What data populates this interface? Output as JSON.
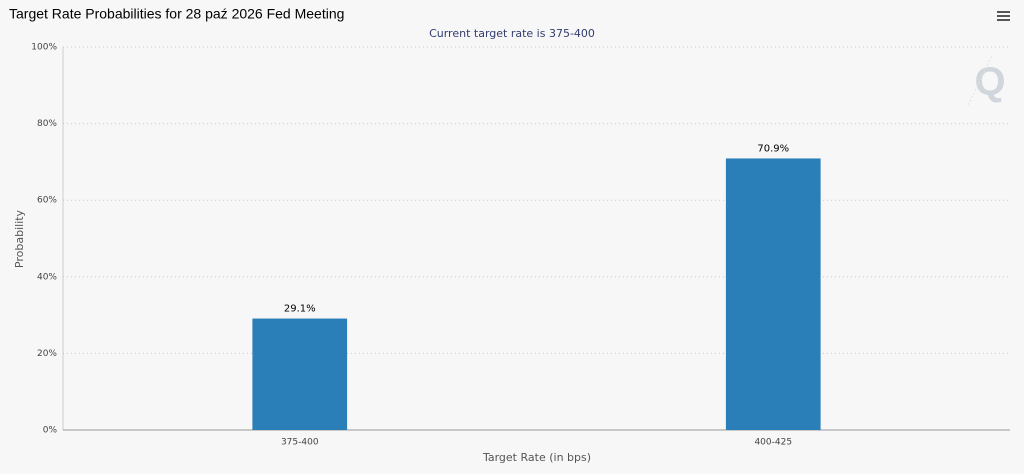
{
  "chart_data": {
    "type": "bar",
    "title": "Target Rate Probabilities for 28 paź 2026 Fed Meeting",
    "subtitle": "Current target rate is 375-400",
    "x_label": "Target Rate (in bps)",
    "y_label": "Probability",
    "categories": [
      "375-400",
      "400-425"
    ],
    "values": [
      29.1,
      70.9
    ],
    "value_labels": [
      "29.1%",
      "70.9%"
    ],
    "color": "#2b7fb9",
    "ylim": [
      0,
      100
    ],
    "yticks": [
      {
        "value": 0,
        "label": "0%"
      },
      {
        "value": 20,
        "label": "20%"
      },
      {
        "value": 40,
        "label": "40%"
      },
      {
        "value": 60,
        "label": "60%"
      },
      {
        "value": 80,
        "label": "80%"
      },
      {
        "value": 100,
        "label": "100%"
      }
    ],
    "grid": true
  }
}
